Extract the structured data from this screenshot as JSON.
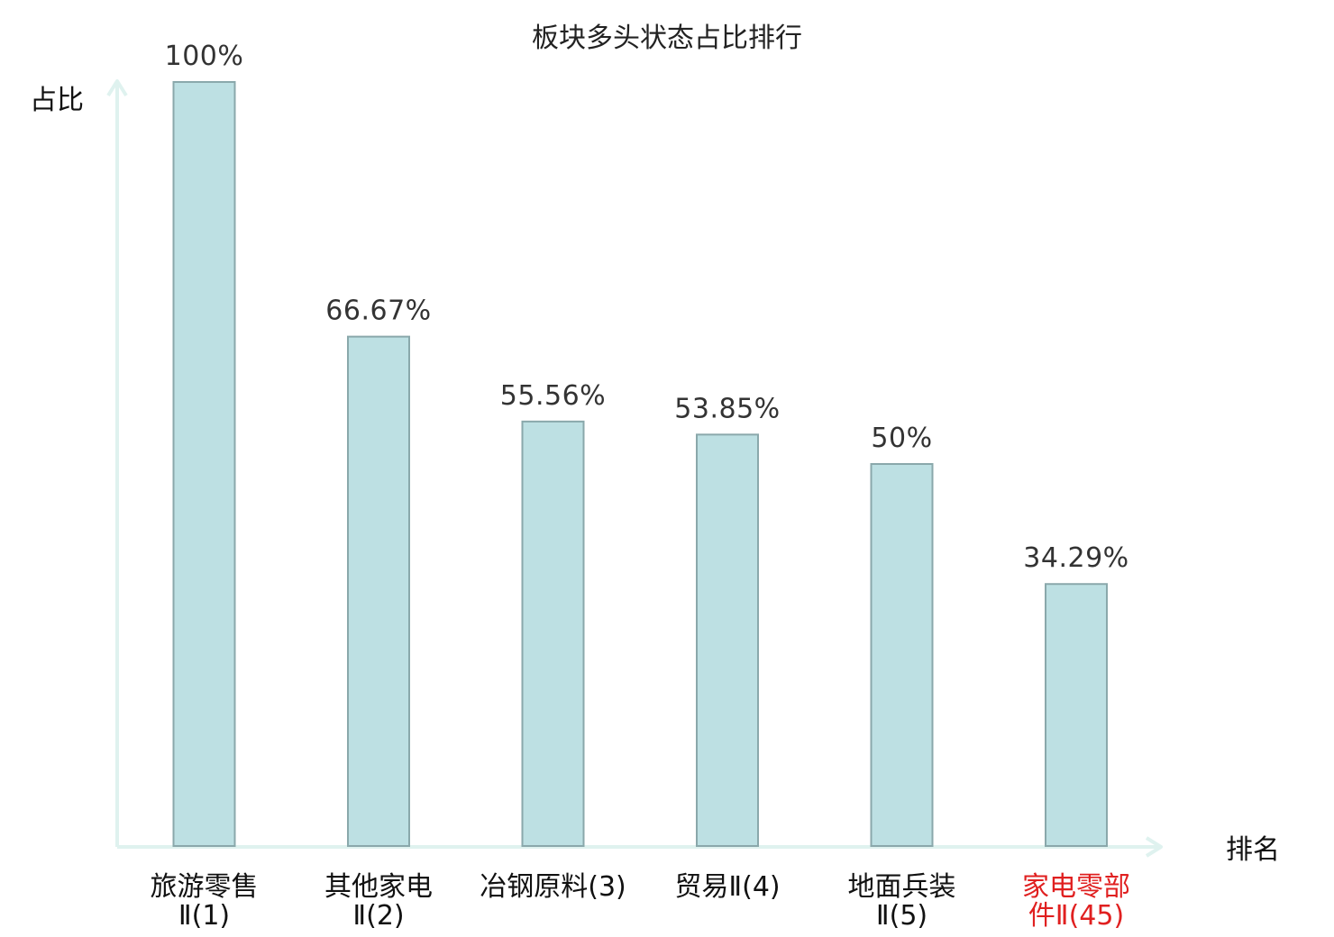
{
  "chart_data": {
    "type": "bar",
    "title": "板块多头状态占比排行",
    "xlabel": "排名",
    "ylabel": "占比",
    "categories": [
      [
        "旅游零售",
        "Ⅱ(1)"
      ],
      [
        "其他家电",
        "Ⅱ(2)"
      ],
      [
        "冶钢原料(3)"
      ],
      [
        "贸易Ⅱ(4)"
      ],
      [
        "地面兵装",
        "Ⅱ(5)"
      ],
      [
        "家电零部",
        "件Ⅱ(45)"
      ]
    ],
    "values": [
      100,
      66.67,
      55.56,
      53.85,
      50,
      34.29
    ],
    "value_labels": [
      "100%",
      "66.67%",
      "55.56%",
      "53.85%",
      "50%",
      "34.29%"
    ],
    "highlight_index": 5,
    "ylim": [
      0,
      100
    ],
    "grid": false,
    "legend": "none",
    "colors": {
      "bar_fill": "#bde0e3",
      "bar_stroke": "#8aa8ab",
      "axis": "#dff2ef",
      "highlight_text": "#e02020"
    }
  }
}
